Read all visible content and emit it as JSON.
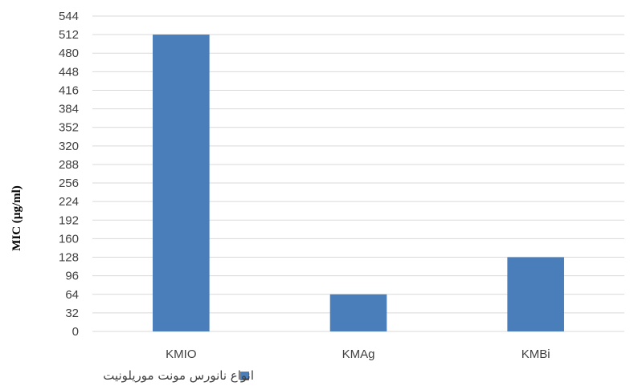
{
  "chart_data": {
    "type": "bar",
    "categories": [
      "KMIO",
      "KMAg",
      "KMBi"
    ],
    "series": [
      {
        "name": "انواع نانورس مونت موریلونیت",
        "values": [
          512,
          64,
          128
        ],
        "color": "#4a7ebb"
      }
    ],
    "ylabel": "MIC (µg/ml)",
    "xlabel": "",
    "ylim": [
      0,
      544
    ],
    "yticks": [
      0,
      32,
      64,
      96,
      128,
      160,
      192,
      224,
      256,
      288,
      320,
      352,
      384,
      416,
      448,
      480,
      512,
      544
    ],
    "grid": true,
    "legend": "bottom",
    "gridColor": "#d9d9d9",
    "textColor": "#404040"
  }
}
